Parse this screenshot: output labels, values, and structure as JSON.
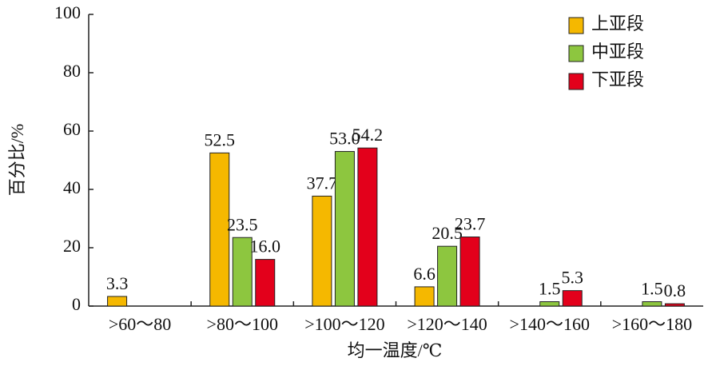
{
  "chart_data": {
    "type": "bar",
    "x_label": "均一温度/℃",
    "y_label": "百分比/%",
    "categories": [
      ">60～80",
      ">80～100",
      ">100～120",
      ">120～140",
      ">140～160",
      ">160～180"
    ],
    "series": [
      {
        "name": "上亚段",
        "color": "#f5b800",
        "values": [
          3.3,
          52.5,
          37.7,
          6.6,
          null,
          null
        ],
        "value_labels": [
          "3.3",
          "52.5",
          "37.7",
          "6.6",
          null,
          null
        ]
      },
      {
        "name": "中亚段",
        "color": "#8dc63f",
        "values": [
          null,
          23.5,
          53.0,
          20.5,
          1.5,
          1.5
        ],
        "value_labels": [
          null,
          "23.5",
          "53.0",
          "20.5",
          "1.5",
          "1.5"
        ]
      },
      {
        "name": "下亚段",
        "color": "#e3001b",
        "values": [
          null,
          16.0,
          54.2,
          23.7,
          5.3,
          0.8
        ],
        "value_labels": [
          null,
          "16.0",
          "54.2",
          "23.7",
          "5.3",
          "0.8"
        ]
      }
    ],
    "ylim": [
      0,
      100
    ],
    "yticks": [
      0,
      20,
      40,
      60,
      80,
      100
    ],
    "legend": "upper right"
  }
}
